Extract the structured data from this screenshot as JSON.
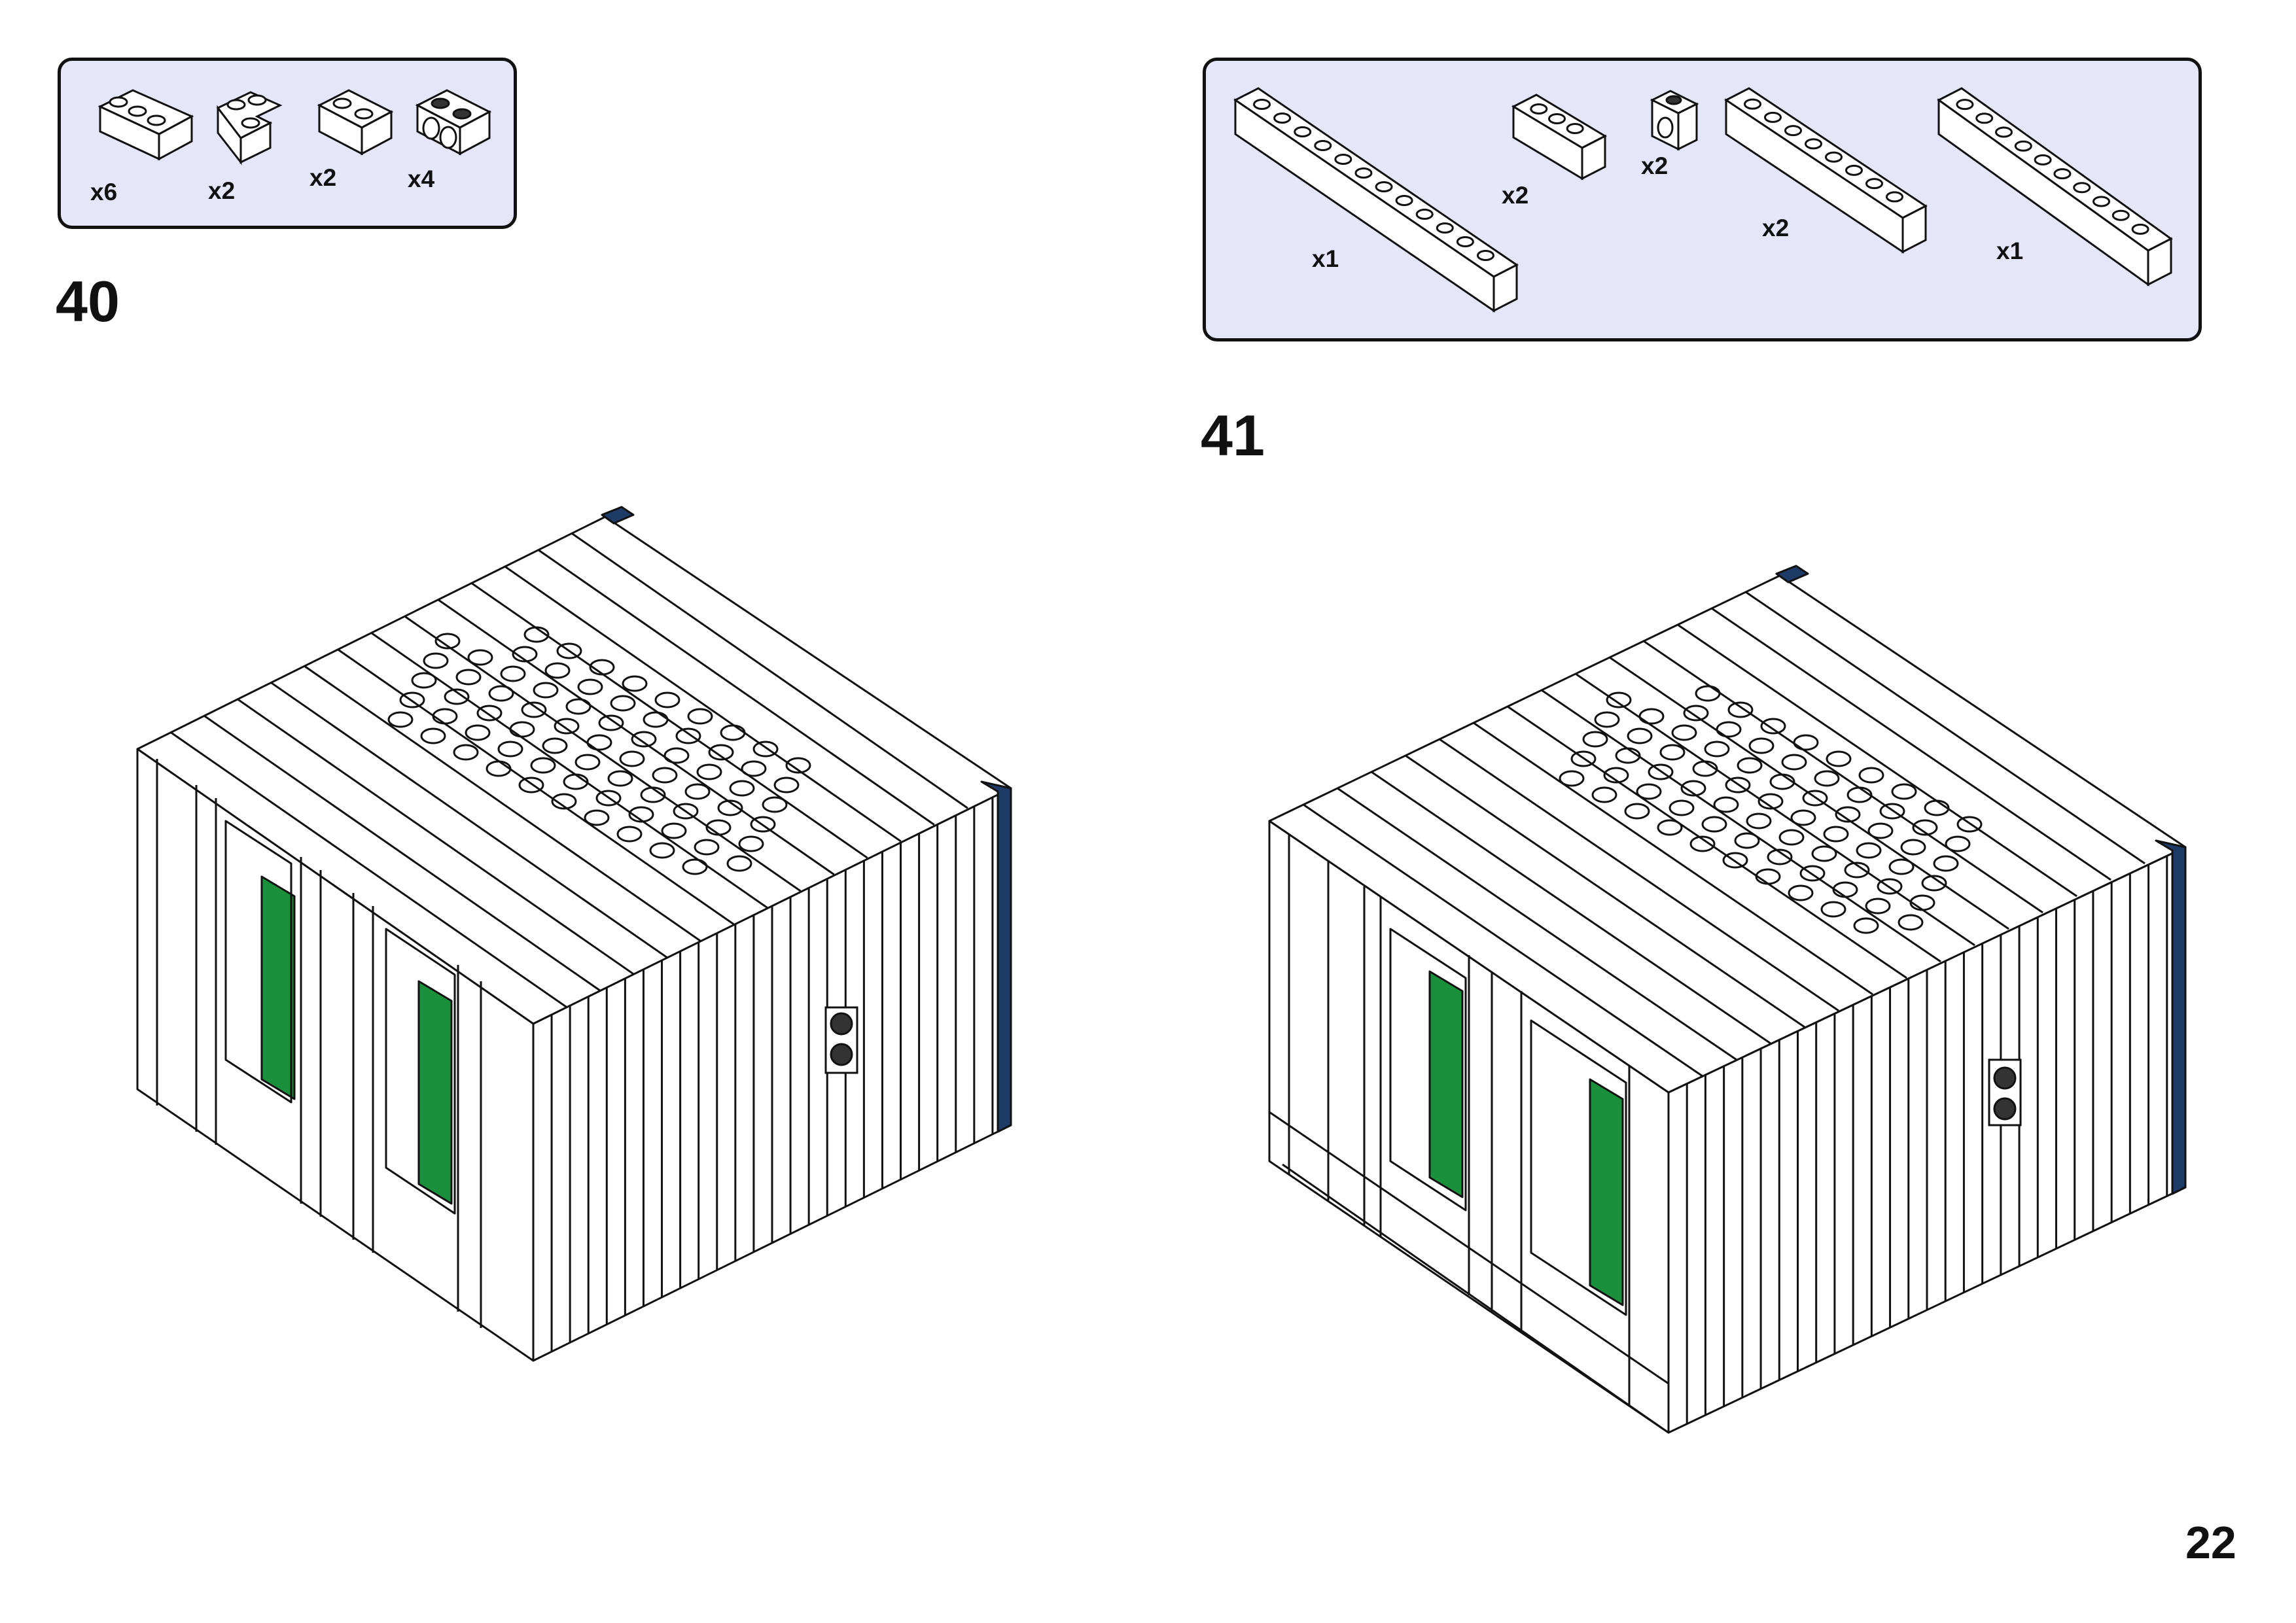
{
  "page_number": "22",
  "steps": [
    {
      "number": "40",
      "parts": [
        {
          "qty": "x6",
          "icon": "brick-1x3-white-icon"
        },
        {
          "qty": "x2",
          "icon": "brick-corner-white-icon"
        },
        {
          "qty": "x2",
          "icon": "brick-1x2-white-icon"
        },
        {
          "qty": "x4",
          "icon": "technic-brick-1x2-holes-white-icon"
        }
      ]
    },
    {
      "number": "41",
      "parts": [
        {
          "qty": "x1",
          "icon": "brick-1x12-white-icon"
        },
        {
          "qty": "x2",
          "icon": "brick-1x3-white-icon"
        },
        {
          "qty": "x2",
          "icon": "technic-brick-1x1-hole-white-icon"
        },
        {
          "qty": "x2",
          "icon": "brick-1x8-white-icon"
        },
        {
          "qty": "x1",
          "icon": "brick-1x10-white-icon"
        }
      ]
    }
  ],
  "colors": {
    "panel_bg": "#e6e6fb",
    "brick_white": "#ffffff",
    "brick_green": "#1a8f3c",
    "brick_navy": "#1e3a66",
    "brick_dark": "#333333"
  }
}
